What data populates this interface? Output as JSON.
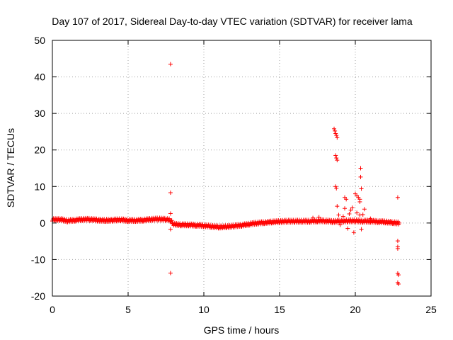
{
  "chart_data": {
    "type": "scatter",
    "title": "Day 107 of 2017, Sidereal Day-to-day VTEC variation (SDTVAR) for receiver lama",
    "xlabel": "GPS time / hours",
    "ylabel": "SDTVAR / TECUs",
    "xlim": [
      0,
      25
    ],
    "ylim": [
      -20,
      50
    ],
    "xticks": [
      "0",
      "5",
      "10",
      "15",
      "20",
      "25"
    ],
    "yticks": [
      "-20",
      "-10",
      "0",
      "10",
      "20",
      "30",
      "40",
      "50"
    ],
    "grid": true,
    "marker": "plus",
    "color": "#ff0000",
    "series": [
      {
        "name": "SDTVAR",
        "baseline": [
          [
            0.0,
            0.9
          ],
          [
            0.5,
            1.0
          ],
          [
            1.0,
            0.6
          ],
          [
            1.5,
            0.8
          ],
          [
            2.0,
            1.0
          ],
          [
            2.5,
            1.0
          ],
          [
            3.0,
            0.8
          ],
          [
            3.5,
            0.7
          ],
          [
            4.0,
            0.8
          ],
          [
            4.5,
            0.9
          ],
          [
            5.0,
            0.7
          ],
          [
            5.5,
            0.7
          ],
          [
            6.0,
            0.8
          ],
          [
            6.5,
            1.0
          ],
          [
            7.0,
            1.1
          ],
          [
            7.5,
            1.0
          ],
          [
            7.8,
            0.8
          ],
          [
            8.0,
            -0.3
          ],
          [
            8.5,
            -0.5
          ],
          [
            9.0,
            -0.5
          ],
          [
            9.5,
            -0.6
          ],
          [
            10.0,
            -0.7
          ],
          [
            10.5,
            -0.9
          ],
          [
            11.0,
            -1.1
          ],
          [
            11.5,
            -1.0
          ],
          [
            12.0,
            -0.8
          ],
          [
            12.5,
            -0.6
          ],
          [
            13.0,
            -0.3
          ],
          [
            13.5,
            0.0
          ],
          [
            14.0,
            0.1
          ],
          [
            14.5,
            0.3
          ],
          [
            15.0,
            0.4
          ],
          [
            15.5,
            0.5
          ],
          [
            16.0,
            0.5
          ],
          [
            16.5,
            0.5
          ],
          [
            17.0,
            0.5
          ],
          [
            17.5,
            0.6
          ],
          [
            18.0,
            0.6
          ],
          [
            18.5,
            0.4
          ],
          [
            19.0,
            0.5
          ],
          [
            19.5,
            0.6
          ],
          [
            20.0,
            0.6
          ],
          [
            20.5,
            0.5
          ],
          [
            21.0,
            0.5
          ],
          [
            21.5,
            0.4
          ],
          [
            22.0,
            0.3
          ],
          [
            22.5,
            0.1
          ],
          [
            22.9,
            0.0
          ]
        ],
        "points": [
          [
            7.8,
            43.5
          ],
          [
            7.8,
            8.3
          ],
          [
            7.8,
            2.6
          ],
          [
            7.8,
            -1.7
          ],
          [
            7.8,
            -13.7
          ],
          [
            17.2,
            1.4
          ],
          [
            17.6,
            1.6
          ],
          [
            18.6,
            25.8
          ],
          [
            18.65,
            25.2
          ],
          [
            18.7,
            24.5
          ],
          [
            18.75,
            24.0
          ],
          [
            18.8,
            23.4
          ],
          [
            18.7,
            18.5
          ],
          [
            18.75,
            17.8
          ],
          [
            18.8,
            17.2
          ],
          [
            18.7,
            10.0
          ],
          [
            18.75,
            9.5
          ],
          [
            18.8,
            4.6
          ],
          [
            18.9,
            2.2
          ],
          [
            19.0,
            -0.5
          ],
          [
            19.2,
            1.8
          ],
          [
            19.3,
            4.0
          ],
          [
            19.3,
            7.0
          ],
          [
            19.4,
            6.5
          ],
          [
            19.5,
            -1.5
          ],
          [
            19.6,
            2.5
          ],
          [
            19.7,
            3.5
          ],
          [
            19.8,
            4.2
          ],
          [
            19.9,
            -2.6
          ],
          [
            20.0,
            8.0
          ],
          [
            20.1,
            7.5
          ],
          [
            20.2,
            7.0
          ],
          [
            20.3,
            6.5
          ],
          [
            20.3,
            5.8
          ],
          [
            20.35,
            15.0
          ],
          [
            20.35,
            12.6
          ],
          [
            20.4,
            9.4
          ],
          [
            20.1,
            2.8
          ],
          [
            20.3,
            2.2
          ],
          [
            20.4,
            -1.7
          ],
          [
            20.5,
            2.3
          ],
          [
            20.6,
            3.8
          ],
          [
            21.0,
            1.2
          ],
          [
            22.8,
            7.0
          ],
          [
            22.8,
            -4.9
          ],
          [
            22.8,
            -6.5
          ],
          [
            22.8,
            -7.0
          ],
          [
            22.8,
            -13.8
          ],
          [
            22.85,
            -14.2
          ],
          [
            22.8,
            -16.3
          ],
          [
            22.85,
            -16.7
          ]
        ]
      }
    ]
  }
}
